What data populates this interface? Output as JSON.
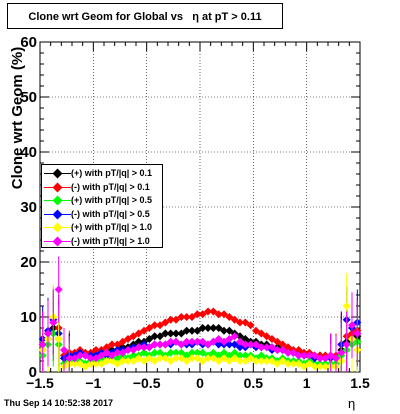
{
  "title": "Clone wrt Geom for Global vs   η at pT > 0.11",
  "footer": "Thu Sep 14 10:52:38 2017",
  "colors": {
    "black": "#000000",
    "red": "#ff0000",
    "green": "#00ff00",
    "blue": "#0000ff",
    "yellow": "#ffff00",
    "magenta": "#ff00ff"
  },
  "chart_data": {
    "type": "scatter",
    "title": "Clone wrt Geom for Global vs   η at pT > 0.11",
    "xlabel": "η",
    "ylabel": "Clone wrt Geom (%)",
    "xlim": [
      -1.5,
      1.5
    ],
    "ylim": [
      0,
      60
    ],
    "x_ticks": [
      "−1.5",
      "−1",
      "−0.5",
      "0",
      "0.5",
      "1",
      "1.5"
    ],
    "y_ticks": [
      "0",
      "10",
      "20",
      "30",
      "40",
      "50",
      "60"
    ],
    "grid": true,
    "legend_position": "left-middle",
    "series": [
      {
        "name": "(+) with pT/|q| > 0.1",
        "color": "#000000",
        "x": [
          -1.475,
          -1.425,
          -1.375,
          -1.325,
          -1.275,
          -1.225,
          -1.175,
          -1.125,
          -1.075,
          -1.025,
          -0.975,
          -0.925,
          -0.875,
          -0.825,
          -0.775,
          -0.725,
          -0.675,
          -0.625,
          -0.575,
          -0.525,
          -0.475,
          -0.425,
          -0.375,
          -0.325,
          -0.275,
          -0.225,
          -0.175,
          -0.125,
          -0.075,
          -0.025,
          0.025,
          0.075,
          0.125,
          0.175,
          0.225,
          0.275,
          0.325,
          0.375,
          0.425,
          0.475,
          0.525,
          0.575,
          0.625,
          0.675,
          0.725,
          0.775,
          0.825,
          0.875,
          0.925,
          0.975,
          1.025,
          1.075,
          1.125,
          1.175,
          1.225,
          1.275,
          1.325,
          1.375,
          1.425,
          1.475
        ],
        "y": [
          4.0,
          6.0,
          8.0,
          6.0,
          2.5,
          3.0,
          3.0,
          3.5,
          3.0,
          3.0,
          3.5,
          3.0,
          3.5,
          4.0,
          4.0,
          4.5,
          4.5,
          5.0,
          5.5,
          5.5,
          6.0,
          6.5,
          6.5,
          7.0,
          7.0,
          7.0,
          7.0,
          7.5,
          7.5,
          7.5,
          8.0,
          8.0,
          8.0,
          8.0,
          7.5,
          7.5,
          7.0,
          6.5,
          6.0,
          5.5,
          5.5,
          5.0,
          5.0,
          4.5,
          4.5,
          4.0,
          4.0,
          3.5,
          3.5,
          3.0,
          3.0,
          3.0,
          3.0,
          2.5,
          3.0,
          2.5,
          4.0,
          5.5,
          6.0,
          6.5
        ]
      },
      {
        "name": "(-) with pT/|q| > 0.1",
        "color": "#ff0000",
        "x": [
          -1.475,
          -1.425,
          -1.375,
          -1.325,
          -1.275,
          -1.225,
          -1.175,
          -1.125,
          -1.075,
          -1.025,
          -0.975,
          -0.925,
          -0.875,
          -0.825,
          -0.775,
          -0.725,
          -0.675,
          -0.625,
          -0.575,
          -0.525,
          -0.475,
          -0.425,
          -0.375,
          -0.325,
          -0.275,
          -0.225,
          -0.175,
          -0.125,
          -0.075,
          -0.025,
          0.025,
          0.075,
          0.125,
          0.175,
          0.225,
          0.275,
          0.325,
          0.375,
          0.425,
          0.475,
          0.525,
          0.575,
          0.625,
          0.675,
          0.725,
          0.775,
          0.825,
          0.875,
          0.925,
          0.975,
          1.025,
          1.075,
          1.125,
          1.175,
          1.225,
          1.275,
          1.325,
          1.375,
          1.425,
          1.475
        ],
        "y": [
          5.0,
          7.0,
          9.0,
          8.0,
          3.0,
          3.5,
          3.5,
          4.0,
          3.5,
          3.5,
          4.0,
          4.0,
          4.5,
          5.0,
          5.0,
          5.5,
          6.0,
          6.5,
          7.0,
          7.5,
          8.0,
          8.5,
          8.5,
          9.0,
          9.5,
          9.5,
          10.0,
          10.0,
          10.0,
          10.5,
          10.5,
          11.0,
          11.0,
          10.5,
          10.5,
          10.0,
          9.5,
          9.0,
          9.0,
          8.5,
          7.5,
          7.0,
          6.5,
          6.0,
          5.5,
          5.0,
          4.5,
          4.0,
          4.0,
          3.5,
          3.5,
          3.0,
          3.0,
          3.0,
          3.0,
          3.0,
          5.0,
          6.5,
          7.0,
          7.5
        ]
      },
      {
        "name": "(+) with pT/|q| > 0.5",
        "color": "#00ff00",
        "x": [
          -1.475,
          -1.425,
          -1.375,
          -1.325,
          -1.275,
          -1.225,
          -1.175,
          -1.125,
          -1.075,
          -1.025,
          -0.975,
          -0.925,
          -0.875,
          -0.825,
          -0.775,
          -0.725,
          -0.675,
          -0.625,
          -0.575,
          -0.525,
          -0.475,
          -0.425,
          -0.375,
          -0.325,
          -0.275,
          -0.225,
          -0.175,
          -0.125,
          -0.075,
          -0.025,
          0.025,
          0.075,
          0.125,
          0.175,
          0.225,
          0.275,
          0.325,
          0.375,
          0.425,
          0.475,
          0.525,
          0.575,
          0.625,
          0.675,
          0.725,
          0.775,
          0.825,
          0.875,
          0.925,
          0.975,
          1.025,
          1.075,
          1.125,
          1.175,
          1.225,
          1.275,
          1.325,
          1.375,
          1.425,
          1.475
        ],
        "y": [
          3.0,
          5.0,
          7.0,
          5.0,
          1.5,
          2.0,
          2.0,
          2.0,
          1.5,
          2.0,
          2.0,
          2.5,
          2.0,
          2.5,
          2.5,
          3.0,
          2.5,
          3.0,
          3.0,
          3.5,
          3.0,
          3.5,
          3.5,
          3.0,
          3.5,
          3.5,
          3.5,
          3.0,
          3.5,
          3.5,
          3.5,
          3.0,
          3.5,
          3.0,
          3.5,
          3.0,
          3.5,
          3.0,
          3.0,
          3.0,
          2.5,
          3.0,
          2.5,
          2.5,
          2.0,
          2.5,
          2.0,
          2.0,
          2.0,
          1.5,
          2.0,
          1.5,
          1.5,
          1.5,
          1.5,
          1.5,
          3.0,
          4.0,
          5.0,
          5.5
        ]
      },
      {
        "name": "(-) with pT/|q| > 0.5",
        "color": "#0000ff",
        "x": [
          -1.475,
          -1.425,
          -1.375,
          -1.325,
          -1.275,
          -1.225,
          -1.175,
          -1.125,
          -1.075,
          -1.025,
          -0.975,
          -0.925,
          -0.875,
          -0.825,
          -0.775,
          -0.725,
          -0.675,
          -0.625,
          -0.575,
          -0.525,
          -0.475,
          -0.425,
          -0.375,
          -0.325,
          -0.275,
          -0.225,
          -0.175,
          -0.125,
          -0.075,
          -0.025,
          0.025,
          0.075,
          0.125,
          0.175,
          0.225,
          0.275,
          0.325,
          0.375,
          0.425,
          0.475,
          0.525,
          0.575,
          0.625,
          0.675,
          0.725,
          0.775,
          0.825,
          0.875,
          0.925,
          0.975,
          1.025,
          1.075,
          1.125,
          1.175,
          1.225,
          1.275,
          1.325,
          1.375,
          1.425,
          1.475
        ],
        "y": [
          6.0,
          7.5,
          9.5,
          7.0,
          2.5,
          3.0,
          3.0,
          3.5,
          3.0,
          3.0,
          3.0,
          3.5,
          3.0,
          3.5,
          4.0,
          4.0,
          4.0,
          4.5,
          4.5,
          5.0,
          4.5,
          5.0,
          5.0,
          5.0,
          5.0,
          5.5,
          5.0,
          5.0,
          5.0,
          5.5,
          5.0,
          5.0,
          5.5,
          5.0,
          5.0,
          5.0,
          5.0,
          4.5,
          4.5,
          5.0,
          4.5,
          4.5,
          4.5,
          4.0,
          4.0,
          4.0,
          3.5,
          3.5,
          3.0,
          3.0,
          3.0,
          2.5,
          2.5,
          2.5,
          2.5,
          2.5,
          5.0,
          9.5,
          8.0,
          9.0
        ]
      },
      {
        "name": "(+) with pT/|q| > 1.0",
        "color": "#ffff00",
        "x": [
          -1.475,
          -1.425,
          -1.375,
          -1.325,
          -1.275,
          -1.225,
          -1.175,
          -1.125,
          -1.075,
          -1.025,
          -0.975,
          -0.925,
          -0.875,
          -0.825,
          -0.775,
          -0.725,
          -0.675,
          -0.625,
          -0.575,
          -0.525,
          -0.475,
          -0.425,
          -0.375,
          -0.325,
          -0.275,
          -0.225,
          -0.175,
          -0.125,
          -0.075,
          -0.025,
          0.025,
          0.075,
          0.125,
          0.175,
          0.225,
          0.275,
          0.325,
          0.375,
          0.425,
          0.475,
          0.525,
          0.575,
          0.625,
          0.675,
          0.725,
          0.775,
          0.825,
          0.875,
          0.925,
          0.975,
          1.025,
          1.075,
          1.125,
          1.175,
          1.225,
          1.275,
          1.325,
          1.375,
          1.425,
          1.475
        ],
        "y": [
          4.0,
          6.0,
          10.0,
          6.0,
          1.0,
          1.5,
          1.5,
          1.5,
          1.0,
          1.5,
          1.5,
          1.5,
          2.0,
          2.0,
          1.5,
          2.0,
          2.0,
          2.0,
          2.5,
          2.0,
          2.5,
          2.0,
          2.5,
          2.5,
          2.0,
          2.5,
          2.5,
          2.0,
          2.5,
          2.5,
          2.0,
          2.5,
          2.5,
          2.0,
          2.5,
          2.0,
          2.5,
          2.0,
          2.0,
          2.5,
          2.0,
          2.0,
          2.0,
          2.0,
          1.5,
          2.0,
          1.5,
          1.5,
          1.5,
          1.0,
          1.5,
          1.0,
          1.0,
          1.0,
          1.0,
          1.0,
          2.0,
          12.0,
          6.0,
          4.0
        ]
      },
      {
        "name": "(-) with pT/|q| > 1.0",
        "color": "#ff00ff",
        "x": [
          -1.475,
          -1.425,
          -1.375,
          -1.325,
          -1.275,
          -1.225,
          -1.175,
          -1.125,
          -1.075,
          -1.025,
          -0.975,
          -0.925,
          -0.875,
          -0.825,
          -0.775,
          -0.725,
          -0.675,
          -0.625,
          -0.575,
          -0.525,
          -0.475,
          -0.425,
          -0.375,
          -0.325,
          -0.275,
          -0.225,
          -0.175,
          -0.125,
          -0.075,
          -0.025,
          0.025,
          0.075,
          0.125,
          0.175,
          0.225,
          0.275,
          0.325,
          0.375,
          0.425,
          0.475,
          0.525,
          0.575,
          0.625,
          0.675,
          0.725,
          0.775,
          0.825,
          0.875,
          0.925,
          0.975,
          1.025,
          1.075,
          1.125,
          1.175,
          1.225,
          1.275,
          1.325,
          1.375,
          1.425,
          1.475
        ],
        "y": [
          5.0,
          7.0,
          9.0,
          15.0,
          4.0,
          2.5,
          2.5,
          3.0,
          3.0,
          2.5,
          2.5,
          3.0,
          3.5,
          3.0,
          3.5,
          3.5,
          4.0,
          4.0,
          4.5,
          4.5,
          4.5,
          5.0,
          5.0,
          5.0,
          5.5,
          5.5,
          5.0,
          5.5,
          5.5,
          5.5,
          5.5,
          5.0,
          5.5,
          6.0,
          5.5,
          6.0,
          6.5,
          5.5,
          5.0,
          5.0,
          5.0,
          4.5,
          4.5,
          4.5,
          4.0,
          4.0,
          3.5,
          3.5,
          3.0,
          3.0,
          3.0,
          3.0,
          2.5,
          2.5,
          3.0,
          2.5,
          3.5,
          5.0,
          8.5,
          7.0
        ]
      }
    ]
  }
}
